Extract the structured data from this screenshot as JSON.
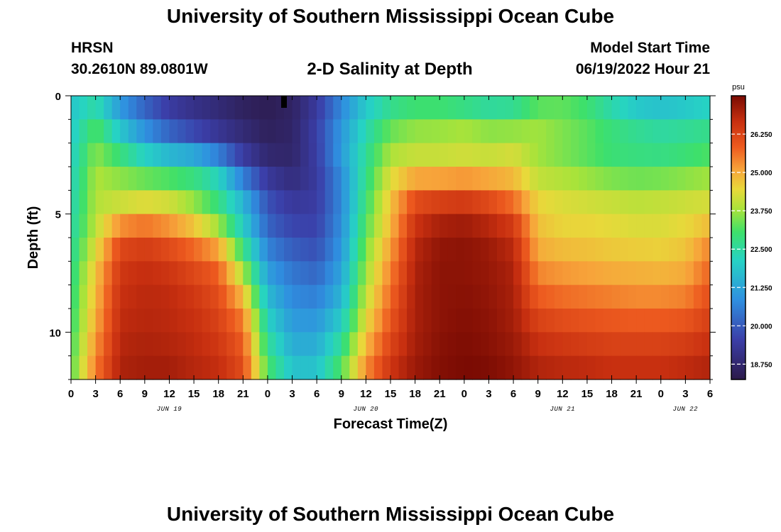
{
  "header": {
    "title": "University of Southern Mississippi Ocean Cube",
    "station": "HRSN",
    "coords": "30.2610N  89.0801W",
    "subtitle": "2-D Salinity at Depth",
    "model_start_label": "Model Start Time",
    "model_start_value": "06/19/2022 Hour 21",
    "footer_title": "University of Southern Mississippi Ocean Cube"
  },
  "chart_data": {
    "type": "heatmap",
    "title": "2-D Salinity at Depth",
    "xlabel": "Forecast Time(Z)",
    "ylabel": "Depth (ft)",
    "x_unit": "hours",
    "x_range": [
      0,
      78
    ],
    "x_tick_labels": [
      "0",
      "3",
      "6",
      "9",
      "12",
      "15",
      "18",
      "21",
      "0",
      "3",
      "6",
      "9",
      "12",
      "15",
      "18",
      "21",
      "0",
      "3",
      "6",
      "9",
      "12",
      "15",
      "18",
      "21",
      "0",
      "3",
      "6"
    ],
    "day_labels": [
      {
        "label": "JUN 19",
        "hour": 12
      },
      {
        "label": "JUN 20",
        "hour": 36
      },
      {
        "label": "JUN 21",
        "hour": 60
      },
      {
        "label": "JUN 22",
        "hour": 75
      }
    ],
    "y_range": [
      0,
      12
    ],
    "y_major_ticks": [
      0,
      5,
      10
    ],
    "y_tick_labels": [
      "0",
      "5",
      "10"
    ],
    "colorbar": {
      "unit": "psu",
      "min": 18.25,
      "max": 27.5,
      "tick_values": [
        18.75,
        20.0,
        21.25,
        22.5,
        23.75,
        25.0,
        26.25
      ],
      "tick_labels": [
        "18.750",
        "20.000",
        "21.250",
        "22.500",
        "23.750",
        "25.000",
        "26.250"
      ]
    },
    "grid": false,
    "depth_layers_ft": [
      0,
      1,
      2,
      3,
      4,
      5,
      6,
      7,
      8,
      9,
      10,
      11,
      12
    ],
    "time_series_hours": [
      0,
      3,
      6,
      9,
      12,
      15,
      18,
      21,
      24,
      27,
      30,
      33,
      36,
      39,
      42,
      45,
      48,
      51,
      54,
      57,
      60,
      63,
      66,
      69,
      72,
      75,
      78
    ],
    "salinity_psu": [
      [
        21.8,
        22.0,
        20.6,
        19.8,
        19.3,
        19.0,
        18.8,
        18.5,
        18.4,
        18.6,
        19.3,
        20.7,
        21.8,
        22.4,
        22.6,
        22.5,
        22.0,
        21.7,
        21.9,
        22.7,
        23.0,
        22.6,
        21.8,
        21.3,
        21.2,
        21.4,
        21.7
      ],
      [
        21.9,
        23.0,
        21.5,
        20.5,
        19.6,
        19.2,
        18.9,
        18.6,
        18.4,
        18.6,
        19.5,
        20.8,
        22.1,
        23.0,
        23.4,
        23.5,
        23.6,
        23.4,
        23.4,
        23.8,
        23.6,
        23.4,
        23.0,
        22.6,
        22.4,
        22.5,
        22.6
      ],
      [
        22.0,
        23.4,
        22.3,
        21.3,
        20.7,
        20.2,
        19.6,
        19.1,
        18.6,
        18.7,
        19.6,
        21.2,
        22.6,
        23.7,
        23.9,
        23.9,
        24.0,
        23.8,
        23.9,
        23.7,
        23.4,
        23.1,
        22.8,
        22.7,
        22.6,
        22.7,
        22.9
      ],
      [
        22.1,
        23.8,
        23.5,
        22.9,
        22.5,
        22.4,
        21.6,
        19.8,
        18.9,
        18.7,
        19.4,
        20.9,
        22.6,
        24.0,
        24.3,
        24.3,
        24.4,
        24.4,
        24.6,
        23.8,
        23.6,
        23.4,
        23.1,
        23.0,
        23.0,
        23.2,
        23.4
      ],
      [
        22.2,
        23.9,
        23.7,
        23.8,
        23.8,
        23.3,
        22.8,
        21.4,
        19.8,
        19.2,
        19.4,
        20.7,
        22.9,
        24.7,
        25.8,
        25.9,
        26.0,
        25.7,
        25.1,
        24.3,
        24.2,
        24.0,
        23.9,
        23.8,
        23.9,
        24.0,
        24.1
      ],
      [
        22.3,
        23.9,
        24.6,
        24.9,
        24.6,
        24.0,
        22.9,
        21.7,
        19.9,
        19.5,
        19.5,
        20.8,
        23.0,
        24.7,
        26.4,
        26.8,
        26.9,
        26.6,
        26.2,
        24.7,
        24.4,
        24.4,
        24.3,
        24.2,
        24.2,
        24.3,
        24.4
      ],
      [
        22.4,
        24.1,
        26.0,
        26.2,
        25.9,
        25.4,
        24.6,
        22.4,
        20.4,
        19.8,
        19.7,
        20.9,
        23.4,
        25.0,
        26.8,
        27.2,
        27.3,
        27.1,
        26.7,
        24.8,
        24.6,
        24.6,
        24.5,
        24.4,
        24.4,
        24.6,
        25.2
      ],
      [
        22.6,
        24.6,
        26.4,
        26.6,
        26.4,
        26.0,
        25.6,
        23.4,
        20.9,
        20.3,
        20.0,
        21.1,
        23.6,
        25.3,
        26.9,
        27.3,
        27.3,
        27.2,
        26.9,
        25.2,
        25.0,
        24.9,
        24.8,
        24.8,
        24.7,
        24.8,
        25.6
      ],
      [
        22.7,
        24.8,
        26.6,
        26.8,
        26.7,
        26.4,
        26.0,
        24.4,
        21.4,
        20.6,
        20.4,
        21.4,
        23.9,
        25.6,
        27.0,
        27.3,
        27.3,
        27.2,
        27.0,
        25.6,
        25.4,
        25.3,
        25.2,
        25.1,
        25.1,
        25.2,
        25.9
      ],
      [
        22.8,
        24.9,
        26.7,
        26.8,
        26.8,
        26.6,
        26.2,
        25.3,
        21.9,
        20.9,
        20.8,
        21.7,
        24.2,
        25.8,
        27.0,
        27.3,
        27.4,
        27.3,
        27.0,
        26.1,
        25.9,
        25.8,
        25.7,
        25.6,
        25.6,
        25.7,
        26.2
      ],
      [
        22.9,
        25.1,
        26.8,
        26.9,
        26.8,
        26.7,
        26.4,
        25.7,
        22.4,
        21.2,
        21.2,
        22.3,
        24.6,
        26.1,
        27.0,
        27.3,
        27.4,
        27.3,
        27.1,
        26.5,
        26.3,
        26.2,
        26.1,
        26.1,
        26.1,
        26.2,
        26.5
      ],
      [
        23.1,
        25.4,
        26.9,
        27.0,
        27.0,
        26.8,
        26.6,
        26.0,
        22.9,
        21.6,
        21.6,
        22.9,
        25.1,
        26.4,
        27.1,
        27.4,
        27.5,
        27.4,
        27.2,
        26.8,
        26.7,
        26.6,
        26.5,
        26.5,
        26.5,
        26.6,
        26.8
      ],
      [
        23.2,
        25.6,
        27.0,
        27.1,
        27.1,
        26.9,
        26.8,
        26.2,
        23.3,
        22.0,
        22.0,
        23.4,
        25.5,
        26.7,
        27.2,
        27.4,
        27.5,
        27.5,
        27.3,
        27.0,
        26.9,
        26.9,
        26.8,
        26.8,
        26.8,
        26.9,
        27.0
      ]
    ]
  }
}
